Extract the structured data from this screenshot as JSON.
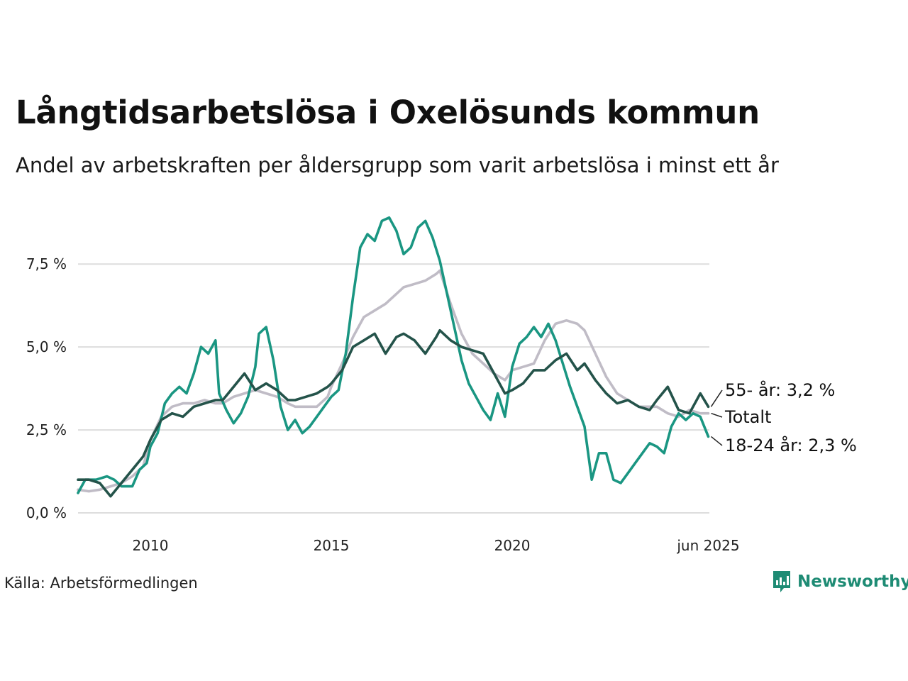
{
  "header": {
    "title": "Långtidsarbetslösa i Oxelösunds kommun",
    "subtitle": "Andel av arbetskraften per åldersgrupp som varit arbetslösa i minst ett år"
  },
  "footer": {
    "source": "Källa: Arbetsförmedlingen",
    "logo_text": "Newsworthy"
  },
  "colors": {
    "age55": "#24534a",
    "total": "#c0bcc6",
    "age1824": "#1a9682",
    "grid": "#dddddd"
  },
  "chart_data": {
    "type": "line",
    "title": "Långtidsarbetslösa i Oxelösunds kommun",
    "subtitle": "Andel av arbetskraften per åldersgrupp som varit arbetslösa i minst ett år",
    "xlabel": "",
    "ylabel": "",
    "xlim": [
      2008.0,
      2025.45
    ],
    "ylim": [
      0,
      9.3
    ],
    "grid": true,
    "x_ticks": [
      {
        "value": 2010,
        "label": "2010"
      },
      {
        "value": 2015,
        "label": "2015"
      },
      {
        "value": 2020,
        "label": "2020"
      },
      {
        "value": 2025.42,
        "label": "jun 2025"
      }
    ],
    "y_ticks": [
      {
        "value": 0,
        "label": "0,0 %"
      },
      {
        "value": 2.5,
        "label": "2,5 %"
      },
      {
        "value": 5,
        "label": "5,0 %"
      },
      {
        "value": 7.5,
        "label": "7,5 %"
      }
    ],
    "series": [
      {
        "key": "total",
        "end_label": "Totalt",
        "x": [
          2008.0,
          2008.3,
          2008.6,
          2008.9,
          2009.2,
          2009.5,
          2009.8,
          2010.0,
          2010.3,
          2010.6,
          2010.9,
          2011.2,
          2011.5,
          2011.8,
          2012.0,
          2012.3,
          2012.6,
          2012.9,
          2013.2,
          2013.5,
          2013.8,
          2014.0,
          2014.3,
          2014.6,
          2014.9,
          2015.0,
          2015.3,
          2015.6,
          2015.9,
          2016.2,
          2016.5,
          2016.8,
          2017.0,
          2017.3,
          2017.6,
          2017.9,
          2018.0,
          2018.3,
          2018.6,
          2018.9,
          2019.2,
          2019.5,
          2019.8,
          2020.0,
          2020.3,
          2020.6,
          2020.9,
          2021.2,
          2021.5,
          2021.8,
          2022.0,
          2022.3,
          2022.6,
          2022.9,
          2023.2,
          2023.5,
          2023.8,
          2024.0,
          2024.3,
          2024.6,
          2024.9,
          2025.2,
          2025.42
        ],
        "y": [
          0.7,
          0.65,
          0.7,
          0.8,
          0.9,
          1.1,
          1.4,
          2.2,
          2.9,
          3.2,
          3.3,
          3.3,
          3.4,
          3.3,
          3.3,
          3.5,
          3.6,
          3.7,
          3.6,
          3.5,
          3.3,
          3.2,
          3.2,
          3.2,
          3.5,
          3.8,
          4.5,
          5.3,
          5.9,
          6.1,
          6.3,
          6.6,
          6.8,
          6.9,
          7.0,
          7.2,
          7.3,
          6.3,
          5.4,
          4.8,
          4.5,
          4.2,
          4.0,
          4.3,
          4.4,
          4.5,
          5.2,
          5.7,
          5.8,
          5.7,
          5.5,
          4.8,
          4.1,
          3.6,
          3.4,
          3.2,
          3.2,
          3.2,
          3.0,
          2.9,
          3.1,
          3.0,
          3.0
        ]
      },
      {
        "key": "age1824",
        "end_label": "18-24 år: 2,3 %",
        "x": [
          2008.0,
          2008.2,
          2008.5,
          2008.8,
          2009.0,
          2009.2,
          2009.5,
          2009.7,
          2009.9,
          2010.0,
          2010.2,
          2010.4,
          2010.6,
          2010.8,
          2011.0,
          2011.2,
          2011.4,
          2011.6,
          2011.8,
          2011.9,
          2012.1,
          2012.3,
          2012.5,
          2012.7,
          2012.9,
          2013.0,
          2013.2,
          2013.4,
          2013.6,
          2013.8,
          2014.0,
          2014.2,
          2014.4,
          2014.6,
          2014.8,
          2015.0,
          2015.2,
          2015.4,
          2015.6,
          2015.8,
          2016.0,
          2016.2,
          2016.4,
          2016.6,
          2016.8,
          2017.0,
          2017.2,
          2017.4,
          2017.6,
          2017.8,
          2018.0,
          2018.2,
          2018.4,
          2018.6,
          2018.8,
          2019.0,
          2019.2,
          2019.4,
          2019.6,
          2019.8,
          2020.0,
          2020.2,
          2020.4,
          2020.6,
          2020.8,
          2021.0,
          2021.2,
          2021.4,
          2021.6,
          2021.8,
          2022.0,
          2022.2,
          2022.4,
          2022.6,
          2022.8,
          2023.0,
          2023.2,
          2023.4,
          2023.6,
          2023.8,
          2024.0,
          2024.2,
          2024.4,
          2024.6,
          2024.8,
          2025.0,
          2025.2,
          2025.42
        ],
        "y": [
          0.6,
          1.0,
          1.0,
          1.1,
          1.0,
          0.8,
          0.8,
          1.3,
          1.5,
          2.0,
          2.4,
          3.3,
          3.6,
          3.8,
          3.6,
          4.2,
          5.0,
          4.8,
          5.2,
          3.6,
          3.1,
          2.7,
          3.0,
          3.5,
          4.4,
          5.4,
          5.6,
          4.6,
          3.2,
          2.5,
          2.8,
          2.4,
          2.6,
          2.9,
          3.2,
          3.5,
          3.7,
          4.8,
          6.5,
          8.0,
          8.4,
          8.2,
          8.8,
          8.9,
          8.5,
          7.8,
          8.0,
          8.6,
          8.8,
          8.3,
          7.6,
          6.6,
          5.6,
          4.6,
          3.9,
          3.5,
          3.1,
          2.8,
          3.6,
          2.9,
          4.4,
          5.1,
          5.3,
          5.6,
          5.3,
          5.7,
          5.2,
          4.5,
          3.8,
          3.2,
          2.6,
          1.0,
          1.8,
          1.8,
          1.0,
          0.9,
          1.2,
          1.5,
          1.8,
          2.1,
          2.0,
          1.8,
          2.6,
          3.0,
          2.8,
          3.0,
          2.9,
          2.3
        ]
      },
      {
        "key": "age55",
        "end_label": "55- år: 3,2 %",
        "x": [
          2008.0,
          2008.3,
          2008.6,
          2008.9,
          2009.2,
          2009.5,
          2009.8,
          2010.0,
          2010.3,
          2010.6,
          2010.9,
          2011.2,
          2011.5,
          2011.8,
          2012.0,
          2012.3,
          2012.6,
          2012.9,
          2013.2,
          2013.5,
          2013.8,
          2014.0,
          2014.3,
          2014.6,
          2014.9,
          2015.0,
          2015.3,
          2015.6,
          2015.9,
          2016.2,
          2016.5,
          2016.8,
          2017.0,
          2017.3,
          2017.6,
          2017.9,
          2018.0,
          2018.3,
          2018.6,
          2018.9,
          2019.2,
          2019.5,
          2019.8,
          2020.0,
          2020.3,
          2020.6,
          2020.9,
          2021.2,
          2021.5,
          2021.8,
          2022.0,
          2022.3,
          2022.6,
          2022.9,
          2023.2,
          2023.5,
          2023.8,
          2024.0,
          2024.3,
          2024.6,
          2024.9,
          2025.2,
          2025.42
        ],
        "y": [
          1.0,
          1.0,
          0.9,
          0.5,
          0.9,
          1.3,
          1.7,
          2.2,
          2.8,
          3.0,
          2.9,
          3.2,
          3.3,
          3.4,
          3.4,
          3.8,
          4.2,
          3.7,
          3.9,
          3.7,
          3.4,
          3.4,
          3.5,
          3.6,
          3.8,
          3.9,
          4.3,
          5.0,
          5.2,
          5.4,
          4.8,
          5.3,
          5.4,
          5.2,
          4.8,
          5.3,
          5.5,
          5.2,
          5.0,
          4.9,
          4.8,
          4.2,
          3.6,
          3.7,
          3.9,
          4.3,
          4.3,
          4.6,
          4.8,
          4.3,
          4.5,
          4.0,
          3.6,
          3.3,
          3.4,
          3.2,
          3.1,
          3.4,
          3.8,
          3.1,
          3.0,
          3.6,
          3.2
        ]
      }
    ]
  }
}
